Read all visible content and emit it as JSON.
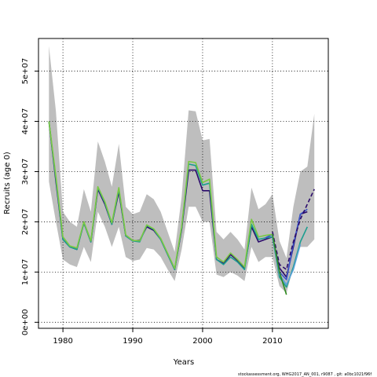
{
  "chart_data": {
    "type": "line",
    "xlabel": "Years",
    "ylabel": "Recruits (age 0)",
    "xlim": [
      1976.5,
      2018
    ],
    "ylim": [
      -1200000,
      56500000
    ],
    "x_ticks": [
      1980,
      1990,
      2000,
      2010
    ],
    "y_ticks": [
      0,
      10000000,
      20000000,
      30000000,
      40000000,
      50000000
    ],
    "y_tick_labels": [
      "0e+00",
      "1e+07",
      "2e+07",
      "3e+07",
      "4e+07",
      "5e+07"
    ],
    "grid": "dotted",
    "band": {
      "years": [
        1978,
        1979,
        1980,
        1981,
        1982,
        1983,
        1984,
        1985,
        1986,
        1987,
        1988,
        1989,
        1990,
        1991,
        1992,
        1993,
        1994,
        1995,
        1996,
        1997,
        1998,
        1999,
        2000,
        2001,
        2002,
        2003,
        2004,
        2005,
        2006,
        2007,
        2008,
        2009,
        2010,
        2011,
        2012,
        2013,
        2014,
        2015,
        2016
      ],
      "upper": [
        55000000,
        42000000,
        22000000,
        20000000,
        19000000,
        26500000,
        22000000,
        36000000,
        32000000,
        27000000,
        35500000,
        23000000,
        21500000,
        22000000,
        25500000,
        24500000,
        22000000,
        18000000,
        14000000,
        25000000,
        42200000,
        42000000,
        36200000,
        36500000,
        18000000,
        16500000,
        18000000,
        16500000,
        14500000,
        26800000,
        22500000,
        23500000,
        25500000,
        16200000,
        12800000,
        23000000,
        30000000,
        31000000,
        41500000
      ],
      "lower": [
        28000000,
        20000000,
        12500000,
        11500000,
        11000000,
        15000000,
        12000000,
        22000000,
        19000000,
        15000000,
        19000000,
        13000000,
        12200000,
        12500000,
        14800000,
        14500000,
        13000000,
        10500000,
        8200000,
        14500000,
        23000000,
        23000000,
        20000000,
        20000000,
        9500000,
        9000000,
        10000000,
        9300000,
        8200000,
        15000000,
        12000000,
        13000000,
        13000000,
        7200000,
        5800000,
        11000000,
        15000000,
        15000000,
        16500000
      ]
    },
    "series": [
      {
        "color": "#2b0b6b",
        "style": "solid",
        "x": [
          1978,
          1979,
          1980,
          1981,
          1982,
          1983,
          1984,
          1985,
          1986,
          1987,
          1988,
          1989,
          1990,
          1991,
          1992,
          1993,
          1994,
          1995,
          1996,
          1997,
          1998,
          1999,
          2000,
          2001,
          2002,
          2003,
          2004,
          2005,
          2006,
          2007,
          2008,
          2009,
          2010,
          2011,
          2012,
          2013,
          2014,
          2015
        ],
        "y": [
          40000000,
          28000000,
          16500000,
          15000000,
          14500000,
          19800000,
          16000000,
          26500000,
          23500000,
          19500000,
          26000000,
          17200000,
          16200000,
          16300000,
          19000000,
          18300000,
          16500000,
          13500000,
          10500000,
          18500000,
          30300000,
          30300000,
          26200000,
          26200000,
          12500000,
          11700000,
          13500000,
          12300000,
          10800000,
          19000000,
          16000000,
          16500000,
          17000000,
          10800000,
          9000000,
          15000000,
          21500000,
          22000000
        ]
      },
      {
        "color": "#1c9e8f",
        "style": "solid",
        "x": [
          1978,
          1979,
          1980,
          1981,
          1982,
          1983,
          1984,
          1985,
          1986,
          1987,
          1988,
          1989,
          1990,
          1991,
          1992,
          1993,
          1994,
          1995,
          1996,
          1997,
          1998,
          1999,
          2000,
          2001,
          2002,
          2003,
          2004,
          2005,
          2006,
          2007,
          2008,
          2009,
          2010,
          2011,
          2012,
          2013,
          2014,
          2015
        ],
        "y": [
          40000000,
          28500000,
          16500000,
          15000000,
          14500000,
          19800000,
          16000000,
          26800000,
          23800000,
          19500000,
          26500000,
          17200000,
          16200000,
          16000000,
          19300000,
          18500000,
          16500000,
          13500000,
          10500000,
          18800000,
          31500000,
          31200000,
          27300000,
          27700000,
          12500000,
          11500000,
          13000000,
          12000000,
          10500000,
          19500000,
          16500000,
          16800000,
          17000000,
          9000000,
          7000000,
          11000000,
          16000000,
          19000000
        ]
      },
      {
        "color": "#3a55c9",
        "style": "solid",
        "x": [
          2009,
          2010,
          2011,
          2012,
          2013,
          2014,
          2015
        ],
        "y": [
          16800000,
          17500000,
          10000000,
          8500000,
          15500000,
          21500000,
          22500000
        ]
      },
      {
        "color": "#5aa0d8",
        "style": "solid",
        "x": [
          2010,
          2011,
          2012,
          2013,
          2014
        ],
        "y": [
          17200000,
          9500000,
          7500000,
          10500000,
          15500000
        ]
      },
      {
        "color": "#2b0b6b",
        "style": "dashed",
        "x": [
          2010,
          2011,
          2012,
          2013,
          2014,
          2015,
          2016
        ],
        "y": [
          18000000,
          11500000,
          10500000,
          16000000,
          20500000,
          23500000,
          26500000
        ]
      },
      {
        "color": "#7ac943",
        "style": "solid",
        "x": [
          1978,
          1979,
          1980,
          1981,
          1982,
          1983,
          1984,
          1985,
          1986,
          1987,
          1988,
          1989,
          1990,
          1991,
          1992,
          1993,
          1994,
          1995,
          1996,
          1997,
          1998,
          1999,
          2000,
          2001,
          2002,
          2003,
          2004,
          2005,
          2006,
          2007,
          2008,
          2009,
          2010
        ],
        "y": [
          40000000,
          29000000,
          17000000,
          15200000,
          14800000,
          20000000,
          16200000,
          27000000,
          24000000,
          19800000,
          26800000,
          17400000,
          16300000,
          16200000,
          19400000,
          18600000,
          16700000,
          13700000,
          10700000,
          19000000,
          32000000,
          31800000,
          27800000,
          28500000,
          13000000,
          12000000,
          13800000,
          12500000,
          11000000,
          20500000,
          17000000,
          17300000,
          17500000
        ]
      },
      {
        "color": "#2e8b1e",
        "style": "solid",
        "x": [
          2010,
          2011,
          2012
        ],
        "y": [
          17500000,
          10000000,
          5500000
        ]
      }
    ]
  },
  "footer": "stockassessment.org, WHG2017_AN_001, r9087 , git: a0bc1021f96f"
}
